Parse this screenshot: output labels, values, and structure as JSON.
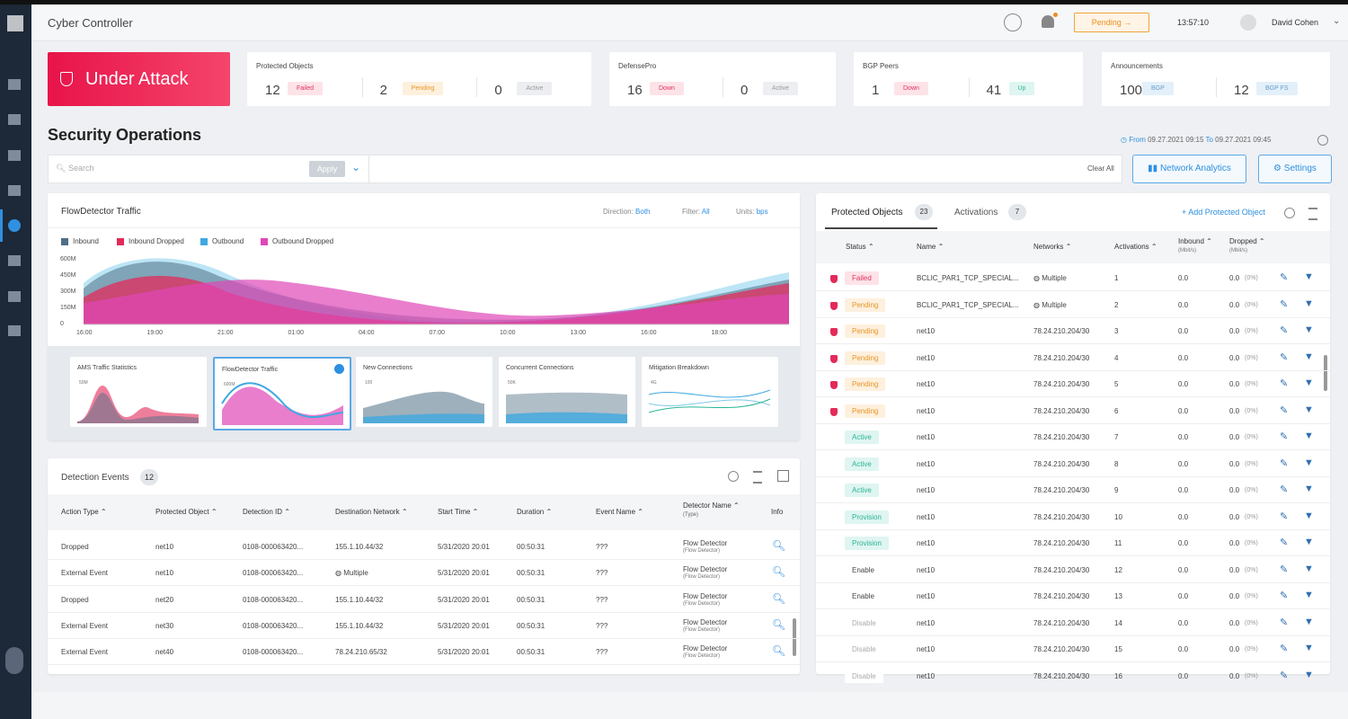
{
  "header": {
    "app_title": "Cyber Controller",
    "pending": "Pending",
    "time": "13:57:10",
    "user": "David Cohen"
  },
  "status_banner": "Under Attack",
  "summary_cards": [
    {
      "title": "Protected Objects",
      "items": [
        {
          "count": 12,
          "label": "Failed"
        },
        {
          "count": 2,
          "label": "Pending"
        },
        {
          "count": 0,
          "label": "Active"
        }
      ]
    },
    {
      "title": "DefensePro",
      "items": [
        {
          "count": 16,
          "label": "Down"
        },
        {
          "count": 0,
          "label": "Active"
        }
      ]
    },
    {
      "title": "BGP Peers",
      "items": [
        {
          "count": 1,
          "label": "Down"
        },
        {
          "count": 41,
          "label": "Up"
        }
      ]
    },
    {
      "title": "Announcements",
      "items": [
        {
          "count": 100,
          "label": "BGP"
        },
        {
          "count": 12,
          "label": "BGP FS"
        }
      ]
    }
  ],
  "section_title": "Security Operations",
  "date_range": {
    "from_label": "From",
    "from": "09.27.2021 09:15",
    "to_label": "To",
    "to": "09.27.2021 09:45"
  },
  "search": {
    "placeholder": "Search",
    "apply": "Apply",
    "clear": "Clear All"
  },
  "buttons": [
    "Network Analytics",
    "Settings"
  ],
  "traffic_panel": {
    "title": "FlowDetector Traffic",
    "filters": [
      {
        "label": "Direction:",
        "value": "Both"
      },
      {
        "label": "Filter:",
        "value": "All"
      },
      {
        "label": "Units:",
        "value": "bps"
      }
    ],
    "legend": [
      "Inbound",
      "Inbound Dropped",
      "Outbound",
      "Outbound Dropped"
    ],
    "yticks": [
      "600M",
      "450M",
      "300M",
      "150M",
      "0"
    ],
    "xticks": [
      "16:00",
      "19:00",
      "21:00",
      "01:00",
      "04:00",
      "07:00",
      "10:00",
      "13:00",
      "16:00",
      "18:00"
    ],
    "thumbnails": [
      {
        "title": "AMS Traffic Statistics",
        "scale": "50M"
      },
      {
        "title": "FlowDetector Traffic",
        "scale": "600M"
      },
      {
        "title": "New Connections",
        "scale": "100"
      },
      {
        "title": "Concurrent Connections",
        "scale": "50K"
      },
      {
        "title": "Mitigation Breakdown",
        "scale": "4G"
      }
    ]
  },
  "detection_events": {
    "title": "Detection Events",
    "count": 12,
    "columns": [
      "Action Type",
      "Protected Object",
      "Detection ID",
      "Destination Network",
      "Start Time",
      "Duration",
      "Event Name",
      "Detector Name",
      "Info"
    ],
    "detector_sub": "(Type)",
    "rows": [
      [
        "Dropped",
        "net10",
        "0108-000063420...",
        "155.1.10.44/32",
        "5/31/2020 20:01",
        "00:50:31",
        "???",
        "Flow Detector",
        "(Flow Detector)"
      ],
      [
        "External Event",
        "net10",
        "0108-000063420...",
        "Multiple",
        "5/31/2020 20:01",
        "00:50:31",
        "???",
        "Flow Detector",
        "(Flow Detector)"
      ],
      [
        "Dropped",
        "net20",
        "0108-000063420...",
        "155.1.10.44/32",
        "5/31/2020 20:01",
        "00:50:31",
        "???",
        "Flow Detector",
        "(Flow Detector)"
      ],
      [
        "External Event",
        "net30",
        "0108-000063420...",
        "155.1.10.44/32",
        "5/31/2020 20:01",
        "00:50:31",
        "???",
        "Flow Detector",
        "(Flow Detector)"
      ],
      [
        "External Event",
        "net40",
        "0108-000063420...",
        "78.24.210.65/32",
        "5/31/2020 20:01",
        "00:50:31",
        "???",
        "Flow Detector",
        "(Flow Detector)"
      ]
    ]
  },
  "protected_objects_panel": {
    "tabs": [
      {
        "label": "Protected Objects",
        "count": 23
      },
      {
        "label": "Activations",
        "count": 7
      }
    ],
    "add": "Add Protected Object",
    "columns": [
      "Status",
      "Name",
      "Networks",
      "Activations",
      "Inbound",
      "Dropped"
    ],
    "units": "(Mbit/s)",
    "rows": [
      [
        "Failed",
        "BCLIC_PAR1_TCP_SPECIAL...",
        "Multiple",
        "1",
        "0.0",
        "0.0",
        "(0%)"
      ],
      [
        "Pending",
        "BCLIC_PAR1_TCP_SPECIAL...",
        "Multiple",
        "2",
        "0.0",
        "0.0",
        "(0%)"
      ],
      [
        "Pending",
        "net10",
        "78.24.210.204/30",
        "3",
        "0.0",
        "0.0",
        "(0%)"
      ],
      [
        "Pending",
        "net10",
        "78.24.210.204/30",
        "4",
        "0.0",
        "0.0",
        "(0%)"
      ],
      [
        "Pending",
        "net10",
        "78.24.210.204/30",
        "5",
        "0.0",
        "0.0",
        "(0%)"
      ],
      [
        "Pending",
        "net10",
        "78.24.210.204/30",
        "6",
        "0.0",
        "0.0",
        "(0%)"
      ],
      [
        "Active",
        "net10",
        "78.24.210.204/30",
        "7",
        "0.0",
        "0.0",
        "(0%)"
      ],
      [
        "Active",
        "net10",
        "78.24.210.204/30",
        "8",
        "0.0",
        "0.0",
        "(0%)"
      ],
      [
        "Active",
        "net10",
        "78.24.210.204/30",
        "9",
        "0.0",
        "0.0",
        "(0%)"
      ],
      [
        "Provision",
        "net10",
        "78.24.210.204/30",
        "10",
        "0.0",
        "0.0",
        "(0%)"
      ],
      [
        "Provision",
        "net10",
        "78.24.210.204/30",
        "11",
        "0.0",
        "0.0",
        "(0%)"
      ],
      [
        "Enable",
        "net10",
        "78.24.210.204/30",
        "12",
        "0.0",
        "0.0",
        "(0%)"
      ],
      [
        "Enable",
        "net10",
        "78.24.210.204/30",
        "13",
        "0.0",
        "0.0",
        "(0%)"
      ],
      [
        "Disable",
        "net10",
        "78.24.210.204/30",
        "14",
        "0.0",
        "0.0",
        "(0%)"
      ],
      [
        "Disable",
        "net10",
        "78.24.210.204/30",
        "15",
        "0.0",
        "0.0",
        "(0%)"
      ],
      [
        "Disable",
        "net10",
        "78.24.210.204/30",
        "16",
        "0.0",
        "0.0",
        "(0%)"
      ]
    ]
  }
}
